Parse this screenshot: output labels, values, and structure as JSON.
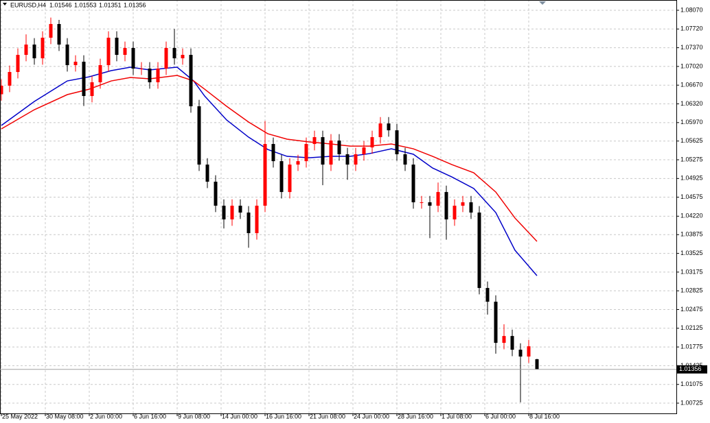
{
  "header": {
    "symbol": "EURUSD,H4",
    "ohlc": [
      1.01546,
      1.01553,
      1.01351,
      1.01356
    ]
  },
  "chart_data": {
    "type": "candlestick",
    "grid": true,
    "up_color": "#ff0000",
    "down_color": "#000000",
    "last_price": 1.01356,
    "xlim": [
      -0.5,
      245.75
    ],
    "ylim": [
      1.00533,
      1.08262
    ],
    "xticks": [
      {
        "value": 0,
        "label": "25 May 2022"
      },
      {
        "value": 16,
        "label": "30 May 08:00"
      },
      {
        "value": 32,
        "label": "2 Jun 00:00"
      },
      {
        "value": 48,
        "label": "6 Jun 16:00"
      },
      {
        "value": 64,
        "label": "9 Jun 08:00"
      },
      {
        "value": 80,
        "label": "14 Jun 00:00"
      },
      {
        "value": 96,
        "label": "16 Jun 16:00"
      },
      {
        "value": 112,
        "label": "21 Jun 08:00"
      },
      {
        "value": 128,
        "label": "24 Jun 00:00"
      },
      {
        "value": 144,
        "label": "28 Jun 16:00"
      },
      {
        "value": 160,
        "label": "1 Jul 08:00"
      },
      {
        "value": 176,
        "label": "6 Jul 00:00"
      },
      {
        "value": 192,
        "label": "8 Jul 16:00"
      }
    ],
    "yticks": [
      {
        "value": 1.0807,
        "label": "1.08070"
      },
      {
        "value": 1.0772,
        "label": "1.07720"
      },
      {
        "value": 1.0737,
        "label": "1.07370"
      },
      {
        "value": 1.0702,
        "label": "1.07020"
      },
      {
        "value": 1.0667,
        "label": "1.06670"
      },
      {
        "value": 1.0632,
        "label": "1.06320"
      },
      {
        "value": 1.0597,
        "label": "1.05970"
      },
      1.05625,
      1.05275,
      1.04925,
      1.04575,
      {
        "value": 1.0422,
        "label": "1.04220"
      },
      1.03875,
      1.03525,
      1.03175,
      1.02825,
      1.02475,
      1.02125,
      1.01775,
      1.01425,
      1.01075,
      1.00725
    ],
    "candles": {
      "x": [
        0,
        3,
        6,
        9,
        12,
        15,
        18,
        21,
        24,
        27,
        30,
        33,
        36,
        39,
        42,
        45,
        48,
        51,
        54,
        57,
        60,
        63,
        66,
        69,
        72,
        75,
        78,
        81,
        84,
        87,
        90,
        93,
        96,
        99,
        102,
        105,
        108,
        111,
        114,
        117,
        120,
        123,
        126,
        129,
        132,
        135,
        138,
        141,
        144,
        147,
        150,
        153,
        156,
        159,
        162,
        165,
        168,
        171,
        174,
        177,
        180,
        183,
        186,
        189,
        192,
        195
      ],
      "open": [
        1.065,
        1.0666,
        1.06916,
        1.07236,
        1.07429,
        1.07172,
        1.07557,
        1.07813,
        1.07429,
        1.07044,
        1.07108,
        1.06467,
        1.06724,
        1.07044,
        1.07557,
        1.07236,
        1.07365,
        1.0698,
        1.0698,
        1.06724,
        1.0698,
        1.07365,
        1.07172,
        1.07236,
        1.06275,
        1.05185,
        1.04865,
        1.04416,
        1.0416,
        1.04416,
        1.04288,
        1.03903,
        1.04416,
        1.0557,
        1.05249,
        1.04672,
        1.05185,
        1.05249,
        1.0557,
        1.05698,
        1.05185,
        1.05634,
        1.05378,
        1.05185,
        1.05378,
        1.05506,
        1.05698,
        1.05954,
        1.05826,
        1.05378,
        1.05185,
        1.0448,
        1.0448,
        1.04416,
        1.04672,
        1.0416,
        1.04416,
        1.0448,
        1.04288,
        1.02878,
        1.02621,
        1.01852,
        1.0198,
        1.01724,
        1.01596,
        1.01546
      ],
      "high": [
        1.0678,
        1.07036,
        1.07356,
        1.0762,
        1.07549,
        1.07677,
        1.07933,
        1.0789,
        1.07549,
        1.07228,
        1.07228,
        1.06844,
        1.07164,
        1.07677,
        1.07677,
        1.07485,
        1.07485,
        1.071,
        1.071,
        1.071,
        1.07485,
        1.0772,
        1.07356,
        1.07356,
        1.06395,
        1.05305,
        1.04985,
        1.04536,
        1.04536,
        1.04536,
        1.04408,
        1.04536,
        1.06,
        1.0569,
        1.05369,
        1.05305,
        1.05369,
        1.0569,
        1.05818,
        1.05818,
        1.05754,
        1.05754,
        1.05498,
        1.05498,
        1.05626,
        1.05818,
        1.06074,
        1.06074,
        1.05946,
        1.05498,
        1.05305,
        1.046,
        1.046,
        1.0485,
        1.04792,
        1.04536,
        1.046,
        1.046,
        1.04408,
        1.02998,
        1.02741,
        1.022,
        1.021,
        1.01844,
        1.01908,
        1.01553
      ],
      "low": [
        1.0638,
        1.0654,
        1.06796,
        1.07116,
        1.07052,
        1.07052,
        1.07437,
        1.07309,
        1.06924,
        1.06924,
        1.0628,
        1.06347,
        1.06604,
        1.06924,
        1.07116,
        1.07116,
        1.0686,
        1.0686,
        1.06604,
        1.06604,
        1.0686,
        1.07052,
        1.07052,
        1.06155,
        1.05065,
        1.04745,
        1.04296,
        1.0399,
        1.0404,
        1.04168,
        1.0363,
        1.03783,
        1.04296,
        1.05129,
        1.04552,
        1.04552,
        1.05065,
        1.05129,
        1.0545,
        1.048,
        1.05065,
        1.05258,
        1.049,
        1.05065,
        1.05258,
        1.05386,
        1.05578,
        1.05706,
        1.05258,
        1.05065,
        1.0436,
        1.0436,
        1.0381,
        1.04296,
        1.0378,
        1.0404,
        1.04296,
        1.04168,
        1.02758,
        1.0238,
        1.0165,
        1.01732,
        1.01604,
        1.0074,
        1.01476,
        1.01351
      ],
      "close": [
        1.0666,
        1.06916,
        1.07236,
        1.07429,
        1.07172,
        1.07557,
        1.07813,
        1.07429,
        1.07044,
        1.07108,
        1.06467,
        1.06724,
        1.07044,
        1.07557,
        1.07236,
        1.07365,
        1.0698,
        1.0698,
        1.06724,
        1.0698,
        1.07365,
        1.07172,
        1.07236,
        1.06275,
        1.05185,
        1.04865,
        1.04416,
        1.0416,
        1.04416,
        1.04288,
        1.03903,
        1.04416,
        1.0557,
        1.05249,
        1.04672,
        1.05185,
        1.05249,
        1.0557,
        1.05698,
        1.05185,
        1.05634,
        1.05378,
        1.05185,
        1.05378,
        1.05506,
        1.05698,
        1.05954,
        1.05826,
        1.05378,
        1.05185,
        1.0448,
        1.0448,
        1.04416,
        1.04672,
        1.0416,
        1.04416,
        1.0448,
        1.04288,
        1.02878,
        1.02621,
        1.01852,
        1.0198,
        1.01724,
        1.01596,
        1.01788,
        1.01356
      ]
    },
    "lines": [
      {
        "color": "#0000c8",
        "x": [
          0,
          12,
          24,
          32,
          40,
          47,
          54,
          64,
          70,
          74,
          82,
          90,
          97,
          104,
          112,
          120,
          127,
          134,
          142,
          150,
          157,
          164,
          172,
          180,
          187,
          195
        ],
        "values": [
          1.05916,
          1.06365,
          1.06749,
          1.06826,
          1.06942,
          1.07006,
          1.06954,
          1.07006,
          1.06749,
          1.06467,
          1.06019,
          1.05698,
          1.05467,
          1.05339,
          1.05313,
          1.05339,
          1.05339,
          1.0539,
          1.0548,
          1.05378,
          1.05121,
          1.04954,
          1.04737,
          1.04288,
          1.03583,
          1.03108
        ]
      },
      {
        "color": "#f00000",
        "x": [
          0,
          12,
          24,
          32,
          40,
          47,
          54,
          64,
          70,
          74,
          82,
          90,
          97,
          104,
          112,
          120,
          127,
          134,
          142,
          150,
          157,
          164,
          172,
          180,
          187,
          195
        ],
        "values": [
          1.05852,
          1.06211,
          1.06493,
          1.06595,
          1.06749,
          1.06813,
          1.06788,
          1.06852,
          1.06749,
          1.06595,
          1.06275,
          1.0598,
          1.05762,
          1.0566,
          1.05609,
          1.0557,
          1.05531,
          1.05531,
          1.0557,
          1.0548,
          1.05339,
          1.05185,
          1.05031,
          1.04672,
          1.04185,
          1.03749
        ]
      }
    ]
  }
}
